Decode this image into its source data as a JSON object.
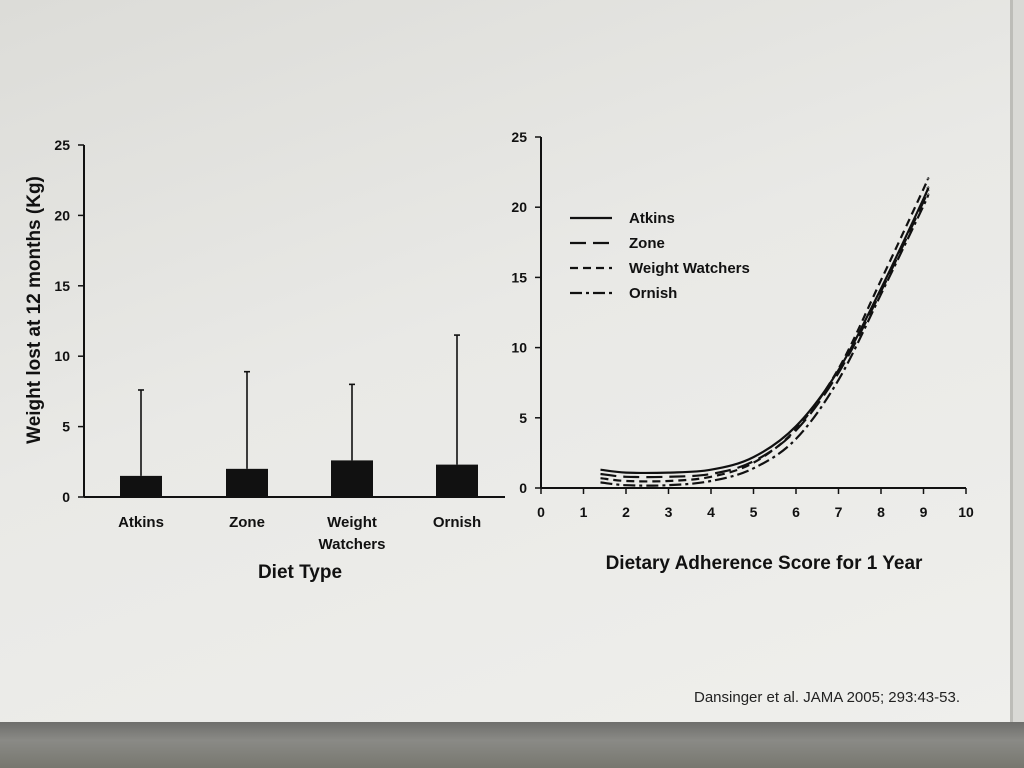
{
  "chart_data": [
    {
      "type": "bar",
      "categories": [
        "Atkins",
        "Zone",
        "Weight Watchers",
        "Ornish"
      ],
      "category_labels": [
        [
          "Atkins"
        ],
        [
          "Zone"
        ],
        [
          "Weight",
          "Watchers"
        ],
        [
          "Ornish"
        ]
      ],
      "values": [
        1.5,
        2.0,
        2.6,
        2.3
      ],
      "error_upper": [
        7.6,
        8.9,
        8.0,
        11.5
      ],
      "xlabel": "Diet Type",
      "ylabel": "Weight lost at 12 months (Kg)",
      "ylim": [
        0,
        25
      ],
      "yticks": [
        0,
        5,
        10,
        15,
        20,
        25
      ],
      "bar_color": "#111111"
    },
    {
      "type": "line",
      "xlabel": "Dietary Adherence Score for 1 Year",
      "ylabel": "",
      "xlim": [
        0,
        10
      ],
      "ylim": [
        0,
        25
      ],
      "xticks": [
        0,
        1,
        2,
        3,
        4,
        5,
        6,
        7,
        8,
        9,
        10
      ],
      "yticks": [
        0,
        5,
        10,
        15,
        20,
        25
      ],
      "legend_position": "top-left",
      "series": [
        {
          "name": "Atkins",
          "dash": "solid",
          "x": [
            1.4,
            2,
            3,
            4,
            5,
            6,
            7,
            8,
            9,
            9.1
          ],
          "y": [
            1.3,
            1.1,
            1.1,
            1.3,
            2.2,
            4.4,
            8.4,
            14.2,
            20.6,
            21.4
          ]
        },
        {
          "name": "Zone",
          "dash": "long-dash",
          "x": [
            1.4,
            2,
            3,
            4,
            5,
            6,
            7,
            8,
            9,
            9.1
          ],
          "y": [
            1.0,
            0.8,
            0.8,
            1.0,
            1.9,
            4.1,
            8.2,
            14.0,
            20.4,
            21.2
          ]
        },
        {
          "name": "Weight Watchers",
          "dash": "short-dash",
          "x": [
            1.4,
            2,
            3,
            4,
            5,
            6,
            7,
            8,
            9,
            9.1
          ],
          "y": [
            0.7,
            0.5,
            0.5,
            0.8,
            1.8,
            4.2,
            8.5,
            14.8,
            21.3,
            22.0
          ]
        },
        {
          "name": "Ornish",
          "dash": "dash-dot",
          "x": [
            1.4,
            2,
            3,
            4,
            5,
            6,
            7,
            8,
            9,
            9.1
          ],
          "y": [
            0.4,
            0.2,
            0.2,
            0.5,
            1.4,
            3.5,
            7.7,
            13.8,
            20.1,
            20.9
          ]
        }
      ]
    }
  ],
  "citation": "Dansinger et al. JAMA 2005; 293:43-53."
}
